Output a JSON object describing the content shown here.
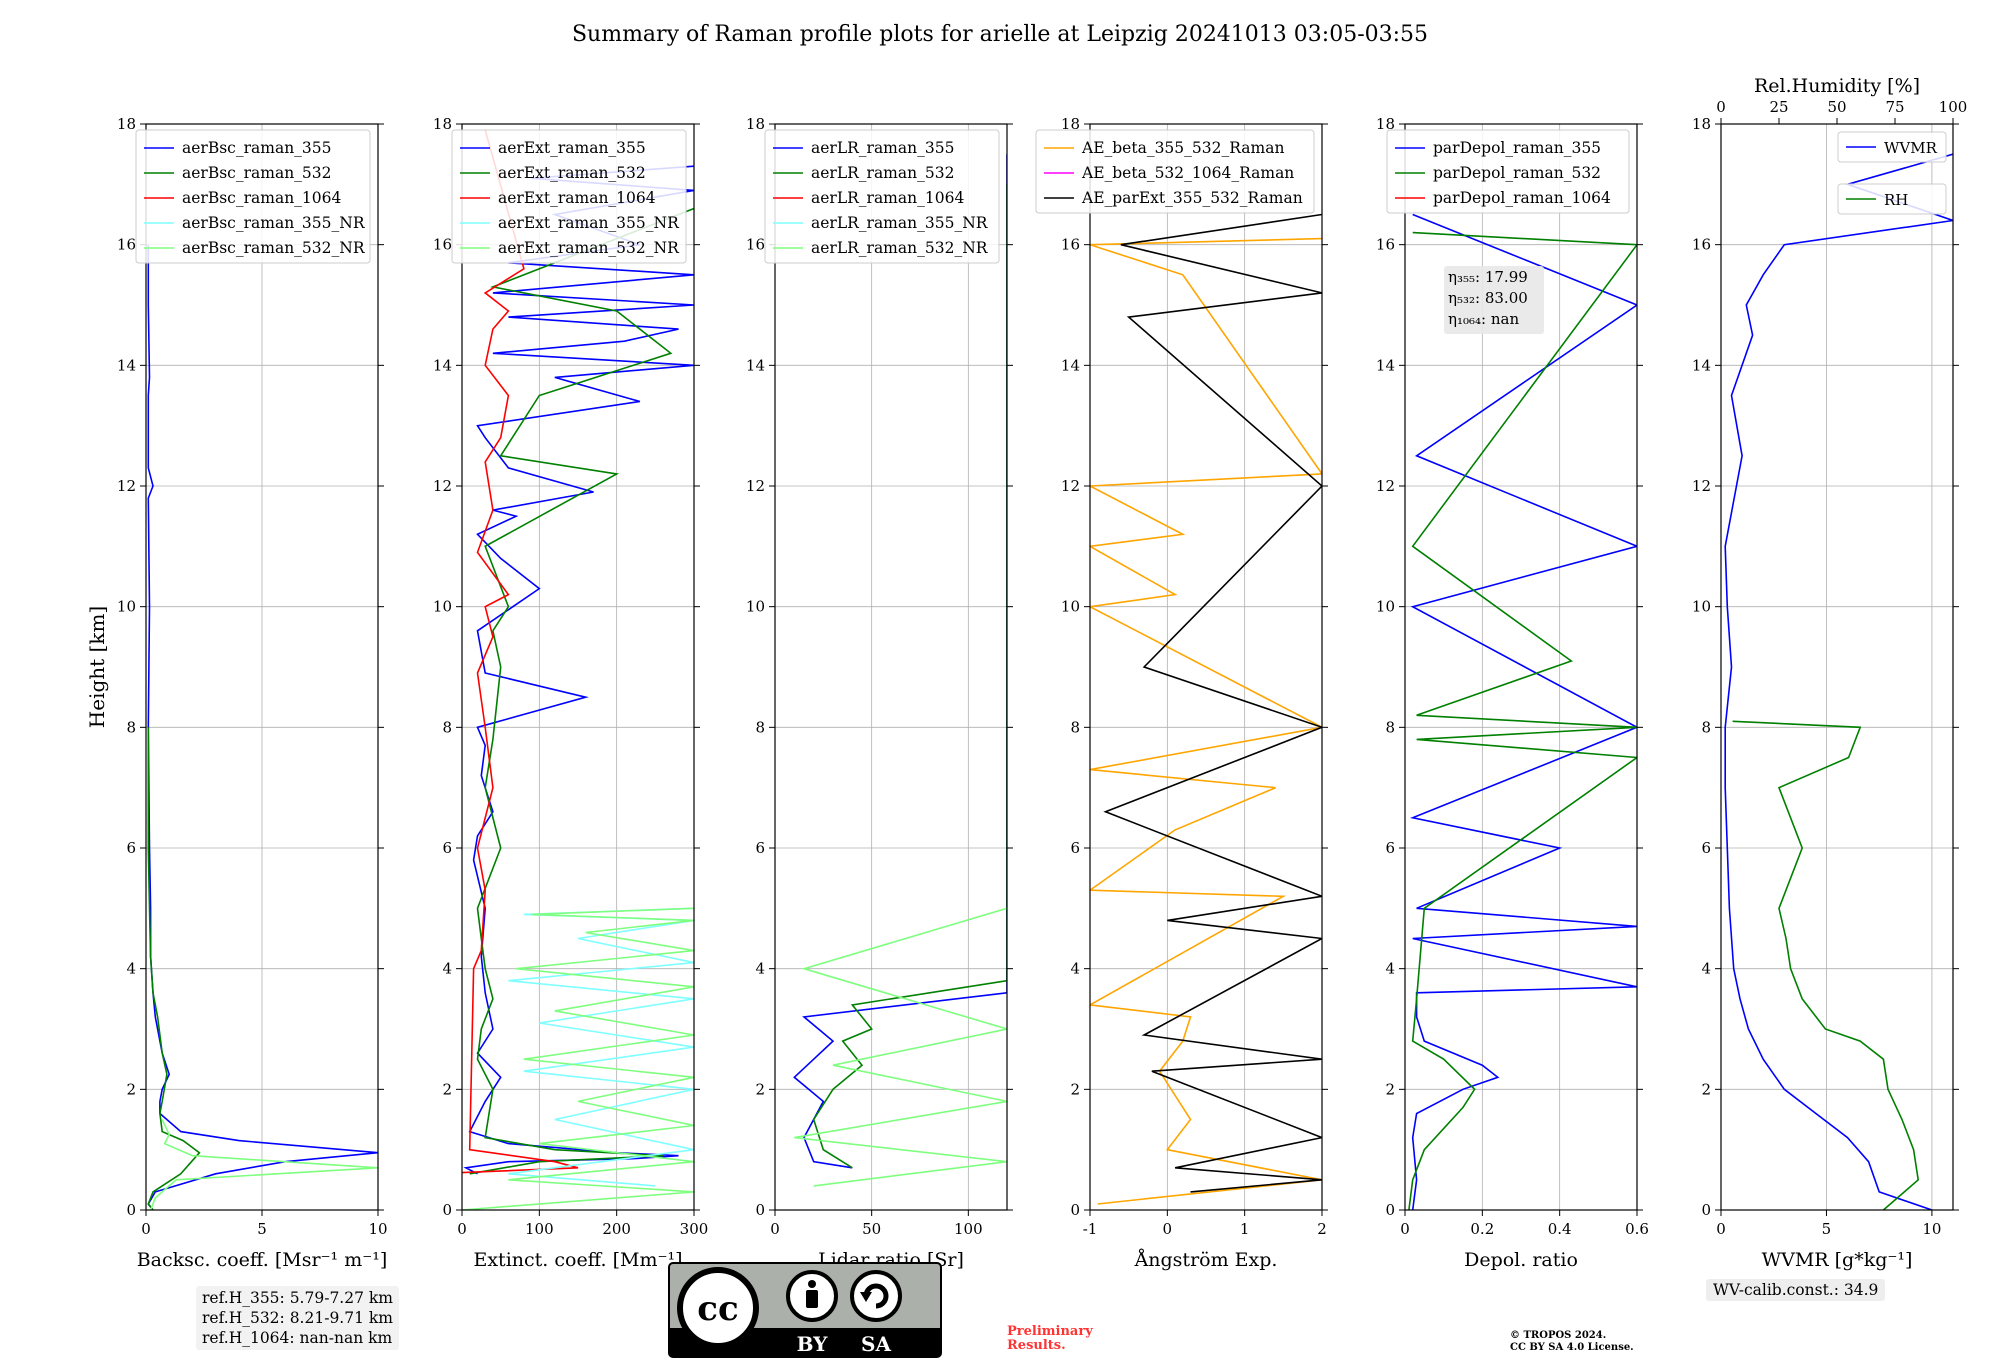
{
  "title": "Summary of Raman profile plots for arielle at Leipzig 20241013 03:05-03:55",
  "ylabel": "Height [km]",
  "ref_heights": [
    "ref.H_355: 5.79-7.27 km",
    "ref.H_532: 8.21-9.71 km",
    "ref.H_1064: nan-nan km"
  ],
  "wv_calib": "WV-calib.const.: 34.9",
  "preliminary": [
    "Preliminary",
    "Results."
  ],
  "copyright": [
    "© TROPOS 2024.",
    "CC BY SA 4.0 License."
  ],
  "license_logo": {
    "cc": "cc",
    "by": "BY",
    "sa": "SA"
  },
  "colors": {
    "blue": "#0000ff",
    "green": "#008000",
    "red": "#ff0000",
    "cyan": "#7fffff",
    "lightgreen": "#7fff7f",
    "orange": "#ffa500",
    "magenta": "#ff00ff",
    "black": "#000000"
  },
  "chart_data": [
    {
      "type": "line",
      "xlabel": "Backsc. coeff. [Msr⁻¹ m⁻¹]",
      "xlim": [
        0,
        10
      ],
      "xticks": [
        0,
        5,
        10
      ],
      "ylim": [
        0,
        18
      ],
      "yticks": [
        0,
        2,
        4,
        6,
        8,
        10,
        12,
        14,
        16,
        18
      ],
      "grid": true,
      "legend": "top-right",
      "series": [
        {
          "name": "aerBsc_raman_355",
          "color": "#0000ff",
          "x": [
            0.3,
            0.1,
            0.4,
            3,
            6,
            10,
            4,
            1.5,
            0.6,
            0.6,
            0.7,
            1.0,
            0.7,
            0.4,
            0.3,
            0.2,
            0.2,
            0.15,
            0.1,
            0.15,
            0.1,
            0.3,
            0.1,
            0.1,
            0.15,
            0.1,
            0.1
          ],
          "y": [
            0,
            0.1,
            0.3,
            0.6,
            0.8,
            0.95,
            1.15,
            1.3,
            1.6,
            1.8,
            2.0,
            2.25,
            2.6,
            3.2,
            3.6,
            4.2,
            5,
            6,
            8,
            10,
            11.8,
            12.0,
            12.3,
            13.5,
            13.8,
            15,
            16
          ]
        },
        {
          "name": "aerBsc_raman_532",
          "color": "#008000",
          "x": [
            0.3,
            0.1,
            0.3,
            1.5,
            2.3,
            1.6,
            0.7,
            0.6,
            0.7,
            0.9,
            0.7,
            0.5,
            0.3,
            0.2,
            0.15,
            0.1,
            0.1
          ],
          "y": [
            0,
            0.1,
            0.3,
            0.6,
            0.95,
            1.15,
            1.3,
            1.6,
            1.8,
            2.25,
            2.6,
            3.2,
            3.6,
            4.2,
            5,
            6,
            8
          ]
        },
        {
          "name": "aerBsc_raman_1064",
          "color": "#ff0000",
          "x": [],
          "y": []
        },
        {
          "name": "aerBsc_raman_355_NR",
          "color": "#7fffff",
          "x": [],
          "y": []
        },
        {
          "name": "aerBsc_raman_532_NR",
          "color": "#7fff7f",
          "x": [
            0.2,
            0.4,
            1.3,
            10,
            2,
            0.8,
            1.0,
            0.7
          ],
          "y": [
            0,
            0.2,
            0.5,
            0.7,
            0.9,
            1.1,
            1.25,
            1.5
          ]
        }
      ]
    },
    {
      "type": "line",
      "xlabel": "Extinct. coeff. [Mm⁻¹]",
      "xlim": [
        0,
        300
      ],
      "xticks": [
        0,
        100,
        200,
        300
      ],
      "ylim": [
        0,
        18
      ],
      "yticks": [
        0,
        2,
        4,
        6,
        8,
        10,
        12,
        14,
        16,
        18
      ],
      "grid": true,
      "legend": "top-right",
      "series": [
        {
          "name": "aerExt_raman_355",
          "color": "#0000ff",
          "x": [
            20,
            5,
            60,
            220,
            280,
            200,
            60,
            10,
            30,
            50,
            20,
            40,
            30,
            25,
            30,
            15,
            20,
            40,
            25,
            30,
            20,
            160,
            30,
            20,
            100,
            50,
            20,
            70,
            40,
            170,
            60,
            30,
            20,
            230,
            120,
            300,
            40,
            210,
            280,
            60,
            300,
            40,
            300,
            60,
            230,
            120,
            300,
            90,
            300
          ],
          "y": [
            0.6,
            0.7,
            0.8,
            0.85,
            0.9,
            0.95,
            1.1,
            1.3,
            1.8,
            2.2,
            2.6,
            3.0,
            3.6,
            4.2,
            5,
            5.8,
            6.2,
            6.6,
            7.2,
            7.7,
            8,
            8.5,
            8.9,
            9.6,
            10.3,
            10.8,
            11.2,
            11.5,
            11.6,
            11.9,
            12.3,
            12.8,
            13,
            13.4,
            13.8,
            14,
            14.2,
            14.4,
            14.6,
            14.8,
            15,
            15.2,
            15.5,
            15.7,
            16,
            16.5,
            16.9,
            17.1,
            17.3
          ]
        },
        {
          "name": "aerExt_raman_532",
          "color": "#008000",
          "x": [
            10,
            100,
            260,
            120,
            30,
            40,
            20,
            25,
            40,
            30,
            25,
            20,
            50,
            30,
            40,
            50,
            40,
            60,
            30,
            200,
            50,
            100,
            270,
            200,
            40,
            300
          ],
          "y": [
            0.6,
            0.8,
            0.9,
            1.0,
            1.2,
            2.0,
            2.5,
            3.0,
            3.5,
            4.0,
            4.5,
            5,
            6,
            7,
            7.8,
            9,
            9.6,
            10,
            11,
            12.2,
            12.5,
            13.5,
            14.2,
            14.9,
            15.3,
            16.6
          ]
        },
        {
          "name": "aerExt_raman_1064",
          "color": "#ff0000",
          "x": [
            0,
            150,
            120,
            10,
            15,
            25,
            30,
            20,
            40,
            30,
            20,
            40,
            30,
            60,
            20,
            40,
            30,
            50,
            60,
            30,
            40,
            60,
            30,
            80,
            30
          ],
          "y": [
            0.62,
            0.7,
            0.8,
            1.0,
            4.0,
            4.3,
            5.3,
            6,
            7,
            8,
            8.9,
            9.5,
            10.0,
            10.2,
            10.9,
            11.6,
            12.4,
            12.8,
            13.5,
            14,
            14.6,
            14.9,
            15.2,
            15.6,
            17.9
          ]
        },
        {
          "name": "aerExt_raman_355_NR",
          "color": "#7fffff",
          "x": [
            250,
            60,
            300,
            120,
            300,
            80,
            300,
            100,
            300,
            60,
            300,
            150,
            300,
            80,
            300
          ],
          "y": [
            0.4,
            0.6,
            1.0,
            1.5,
            2.0,
            2.3,
            2.7,
            3.1,
            3.5,
            3.8,
            4.1,
            4.5,
            4.8,
            4.9,
            5.0
          ]
        },
        {
          "name": "aerExt_raman_532_NR",
          "color": "#7fff7f",
          "x": [
            0,
            300,
            60,
            300,
            100,
            300,
            150,
            300,
            80,
            300,
            120,
            300,
            70,
            300,
            160,
            300,
            90,
            300
          ],
          "y": [
            0,
            0.3,
            0.5,
            0.8,
            1.1,
            1.4,
            1.8,
            2.2,
            2.5,
            2.9,
            3.3,
            3.7,
            4.0,
            4.3,
            4.6,
            4.8,
            4.9,
            5.0
          ]
        }
      ]
    },
    {
      "type": "line",
      "xlabel": "Lidar ratio [Sr]",
      "xlim": [
        0,
        120
      ],
      "xticks": [
        0,
        50,
        100
      ],
      "ylim": [
        0,
        18
      ],
      "yticks": [
        0,
        2,
        4,
        6,
        8,
        10,
        12,
        14,
        16,
        18
      ],
      "grid": true,
      "legend": "top-right",
      "series": [
        {
          "name": "aerLR_raman_355",
          "color": "#0000ff",
          "x": [
            40,
            20,
            15,
            25,
            10,
            20,
            30,
            15,
            120,
            120
          ],
          "y": [
            0.7,
            0.8,
            1.2,
            1.8,
            2.2,
            2.5,
            2.8,
            3.2,
            3.6,
            17.5
          ]
        },
        {
          "name": "aerLR_raman_532",
          "color": "#008000",
          "x": [
            40,
            25,
            20,
            30,
            45,
            35,
            50,
            40,
            120,
            120
          ],
          "y": [
            0.7,
            1.0,
            1.5,
            2.0,
            2.4,
            2.8,
            3.0,
            3.4,
            3.8,
            17.0
          ]
        },
        {
          "name": "aerLR_raman_1064",
          "color": "#ff0000",
          "x": [],
          "y": []
        },
        {
          "name": "aerLR_raman_355_NR",
          "color": "#7fffff",
          "x": [],
          "y": []
        },
        {
          "name": "aerLR_raman_532_NR",
          "color": "#7fff7f",
          "x": [
            20,
            120,
            10,
            120,
            30,
            120,
            15,
            120
          ],
          "y": [
            0.4,
            0.8,
            1.2,
            1.8,
            2.4,
            3.0,
            4.0,
            5.0
          ]
        }
      ]
    },
    {
      "type": "line",
      "xlabel": "Ångström Exp.",
      "xlim": [
        -1,
        2
      ],
      "xticks": [
        -1,
        0,
        1,
        2
      ],
      "ylim": [
        0,
        18
      ],
      "yticks": [
        0,
        2,
        4,
        6,
        8,
        10,
        12,
        14,
        16,
        18
      ],
      "grid": true,
      "legend": "top-right",
      "series": [
        {
          "name": "AE_beta_355_532_Raman",
          "color": "#ffa500",
          "x": [
            -0.9,
            2,
            0,
            0.3,
            0.1,
            -0.1,
            0.2,
            0.3,
            -1,
            1.5,
            -1,
            0.1,
            1.4,
            -1,
            2,
            -1,
            0.1,
            -1,
            0.2,
            -1,
            2,
            0.2,
            -1,
            2
          ],
          "y": [
            0.1,
            0.5,
            1.0,
            1.5,
            1.9,
            2.3,
            2.8,
            3.2,
            3.4,
            5.2,
            5.3,
            6.3,
            7.0,
            7.3,
            8.0,
            10.0,
            10.2,
            11.0,
            11.2,
            12.0,
            12.2,
            15.5,
            16.0,
            16.1
          ]
        },
        {
          "name": "AE_beta_532_1064_Raman",
          "color": "#ff00ff",
          "x": [],
          "y": []
        },
        {
          "name": "AE_parExt_355_532_Raman",
          "color": "#000000",
          "x": [
            0.3,
            2,
            0.1,
            2,
            -0.2,
            2,
            -0.3,
            2,
            0.0,
            2,
            -0.8,
            2,
            -0.3,
            2,
            -0.5,
            2,
            -0.6,
            2
          ],
          "y": [
            0.3,
            0.5,
            0.7,
            1.2,
            2.3,
            2.5,
            2.9,
            4.5,
            4.8,
            5.2,
            6.6,
            8.0,
            9.0,
            12.0,
            14.8,
            15.2,
            16.0,
            16.5
          ]
        }
      ]
    },
    {
      "type": "line",
      "xlabel": "Depol. ratio",
      "xlim": [
        0,
        0.6
      ],
      "xticks": [
        0,
        0.2,
        0.4,
        0.6
      ],
      "ylim": [
        0,
        18
      ],
      "yticks": [
        0,
        2,
        4,
        6,
        8,
        10,
        12,
        14,
        16,
        18
      ],
      "grid": true,
      "legend": "top-right",
      "annotations": [
        "η₃₅₅: 17.99",
        "η₅₃₂: 83.00",
        "η₁₀₆₄: nan"
      ],
      "series": [
        {
          "name": "parDepol_raman_355",
          "color": "#0000ff",
          "x": [
            0.02,
            0.03,
            0.02,
            0.03,
            0.15,
            0.24,
            0.2,
            0.05,
            0.03,
            0.03,
            0.6,
            0.02,
            0.6,
            0.03,
            0.4,
            0.02,
            0.6,
            0.02,
            0.6,
            0.03,
            0.6,
            0.02
          ],
          "y": [
            0,
            0.5,
            1.2,
            1.6,
            2.0,
            2.2,
            2.4,
            2.8,
            3.2,
            3.6,
            3.7,
            4.5,
            4.7,
            5.0,
            6.0,
            6.5,
            8.0,
            10.0,
            11.0,
            12.5,
            15.0,
            16.5
          ]
        },
        {
          "name": "parDepol_raman_532",
          "color": "#008000",
          "x": [
            0.01,
            0.02,
            0.05,
            0.15,
            0.18,
            0.1,
            0.02,
            0.03,
            0.05,
            0.6,
            0.03,
            0.6,
            0.03,
            0.43,
            0.02,
            0.6,
            0.02
          ],
          "y": [
            0,
            0.5,
            1.0,
            1.7,
            2.0,
            2.5,
            2.8,
            3.5,
            5.0,
            7.5,
            7.8,
            8.0,
            8.2,
            9.1,
            11.0,
            16.0,
            16.2
          ]
        },
        {
          "name": "parDepol_raman_1064",
          "color": "#ff0000",
          "x": [],
          "y": []
        }
      ]
    },
    {
      "type": "line",
      "xlabel": "WVMR [g*kg⁻¹]",
      "xlim": [
        0,
        11
      ],
      "xticks": [
        0,
        5,
        10
      ],
      "x2label": "Rel.Humidity [%]",
      "x2lim": [
        0,
        100
      ],
      "x2ticks": [
        0,
        25,
        50,
        75,
        100
      ],
      "ylim": [
        0,
        18
      ],
      "yticks": [
        0,
        2,
        4,
        6,
        8,
        10,
        12,
        14,
        16,
        18
      ],
      "grid": true,
      "legend": "top-right",
      "series": [
        {
          "name": "WVMR",
          "color": "#0000ff",
          "x": [
            10,
            7.5,
            7.0,
            6.0,
            4.5,
            3.0,
            2.0,
            1.3,
            0.9,
            0.6,
            0.4,
            0.3,
            0.2,
            0.2,
            0.5,
            0.3,
            0.2,
            1.0,
            0.5,
            1.5,
            1.2,
            2.0,
            3.0,
            11,
            6,
            11
          ],
          "y": [
            0,
            0.3,
            0.8,
            1.2,
            1.6,
            2.0,
            2.5,
            3.0,
            3.5,
            4.0,
            5.0,
            6.0,
            7.0,
            8.0,
            9.0,
            10.0,
            11.0,
            12.5,
            13.5,
            14.5,
            15.0,
            15.5,
            16.0,
            16.4,
            17.0,
            17.5
          ]
        },
        {
          "name": "RH",
          "color": "#008000",
          "x": [
            70,
            85,
            83,
            78,
            72,
            70,
            60,
            45,
            35,
            30,
            28,
            25,
            30,
            35,
            30,
            25,
            55,
            60,
            5
          ],
          "y": [
            0,
            0.5,
            1.0,
            1.5,
            2.0,
            2.5,
            2.8,
            3.0,
            3.5,
            4.0,
            4.5,
            5.0,
            5.5,
            6.0,
            6.5,
            7.0,
            7.5,
            8.0,
            8.1
          ]
        }
      ]
    }
  ]
}
